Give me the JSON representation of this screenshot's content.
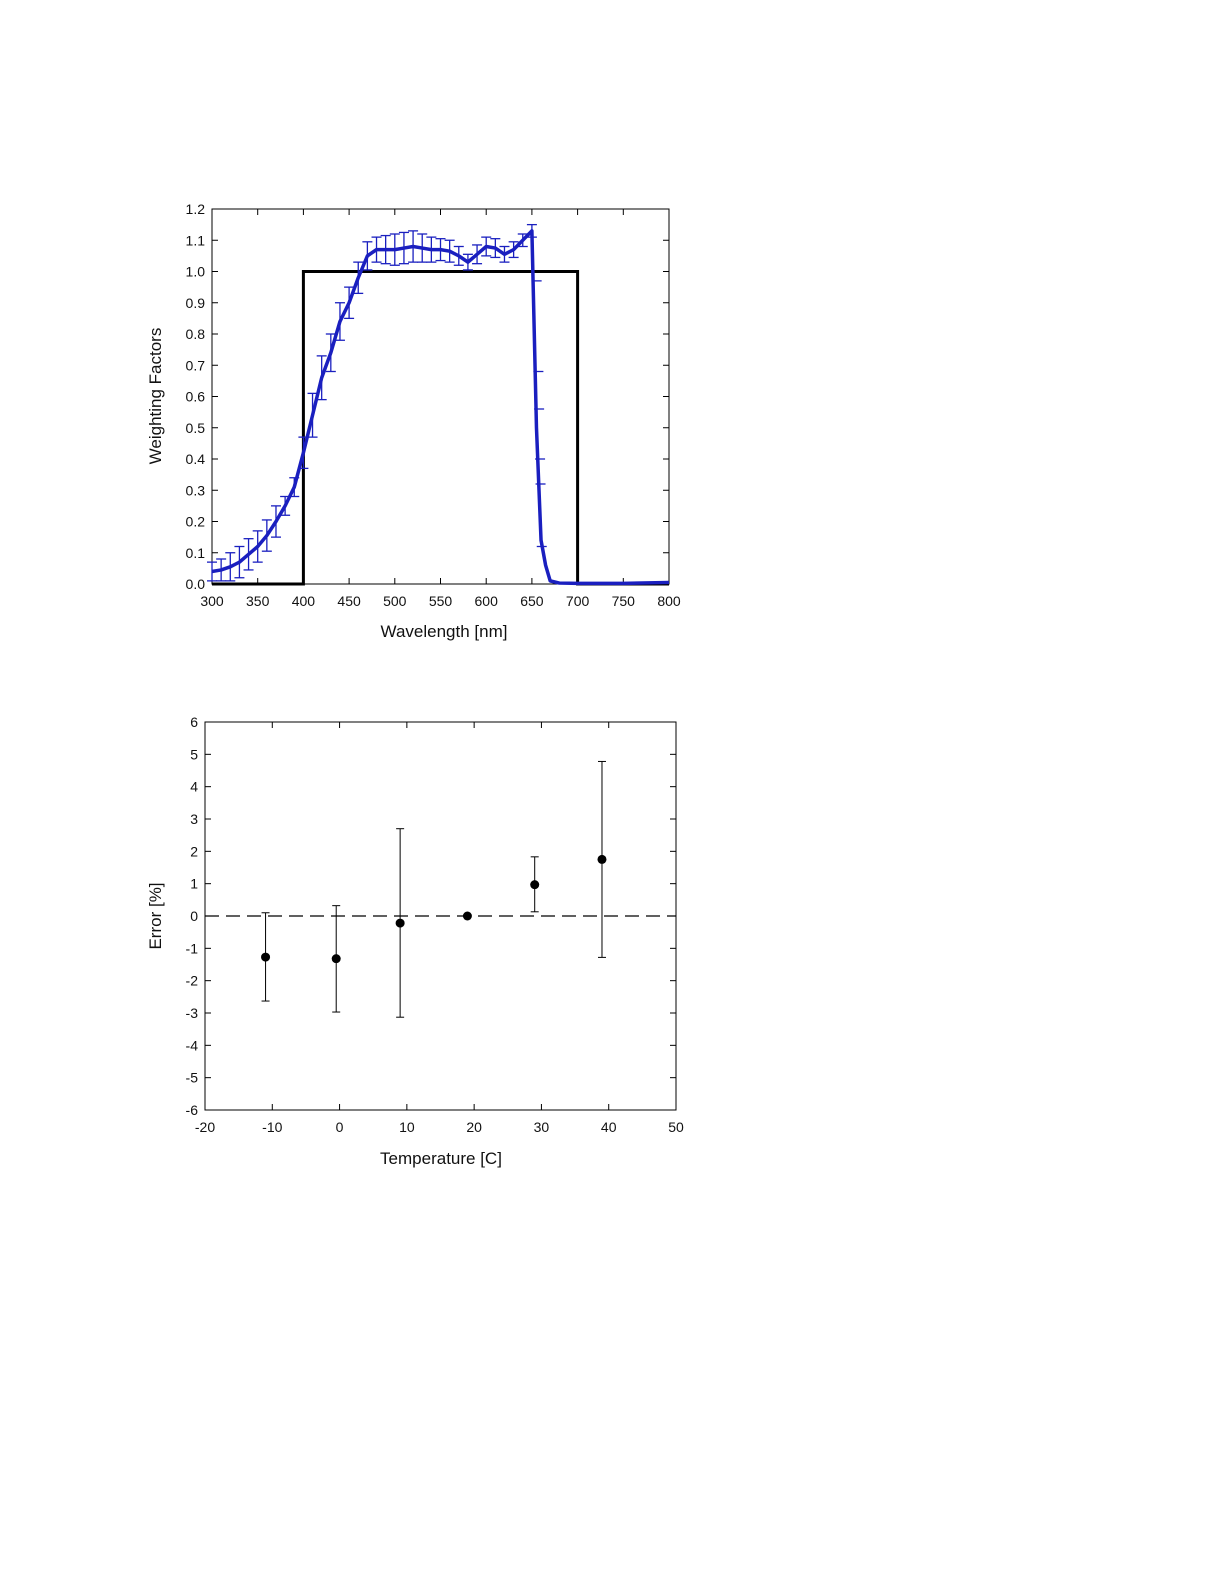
{
  "chart_data": [
    {
      "type": "line",
      "title": "",
      "xlabel": "Wavelength [nm]",
      "ylabel": "Weighting Factors",
      "xlim": [
        300,
        800
      ],
      "ylim": [
        0.0,
        1.2
      ],
      "grid": false,
      "legend": "none",
      "x_ticks": [
        "300",
        "350",
        "400",
        "450",
        "500",
        "550",
        "600",
        "650",
        "700",
        "750",
        "800"
      ],
      "y_ticks": [
        "0.0",
        "0.1",
        "0.2",
        "0.3",
        "0.4",
        "0.5",
        "0.6",
        "0.7",
        "0.8",
        "0.9",
        "1.0",
        "1.1",
        "1.2"
      ],
      "series": [
        {
          "color": "#000000",
          "style": "solid",
          "x": [
            300,
            400,
            400,
            700,
            700,
            800
          ],
          "y": [
            0.0,
            0.0,
            1.0,
            1.0,
            0.0,
            0.0
          ]
        },
        {
          "color": "#1a1fbf",
          "style": "solid-with-error-bars",
          "x": [
            300,
            310,
            320,
            330,
            340,
            350,
            360,
            370,
            380,
            390,
            400,
            410,
            420,
            430,
            440,
            450,
            460,
            470,
            480,
            490,
            500,
            510,
            520,
            530,
            540,
            550,
            560,
            570,
            580,
            590,
            600,
            610,
            620,
            630,
            640,
            650,
            655,
            660,
            665,
            670,
            680,
            700,
            750,
            800
          ],
          "y": [
            0.04,
            0.045,
            0.055,
            0.07,
            0.095,
            0.12,
            0.155,
            0.2,
            0.25,
            0.31,
            0.42,
            0.54,
            0.66,
            0.74,
            0.84,
            0.9,
            0.98,
            1.05,
            1.07,
            1.07,
            1.07,
            1.075,
            1.08,
            1.075,
            1.07,
            1.07,
            1.065,
            1.05,
            1.03,
            1.055,
            1.08,
            1.075,
            1.055,
            1.07,
            1.1,
            1.13,
            0.5,
            0.14,
            0.06,
            0.01,
            0.003,
            0.002,
            0.002,
            0.005
          ],
          "err": [
            0.03,
            0.035,
            0.045,
            0.05,
            0.05,
            0.05,
            0.05,
            0.05,
            0.03,
            0.03,
            0.05,
            0.07,
            0.07,
            0.06,
            0.06,
            0.05,
            0.05,
            0.045,
            0.04,
            0.045,
            0.05,
            0.05,
            0.05,
            0.045,
            0.04,
            0.035,
            0.035,
            0.03,
            0.025,
            0.03,
            0.03,
            0.03,
            0.025,
            0.025,
            0.02,
            0.02,
            0.0,
            0.0,
            0.0,
            0.0,
            0.0,
            0.0,
            0.0,
            0.0
          ]
        }
      ]
    },
    {
      "type": "scatter",
      "title": "",
      "xlabel": "Temperature [C]",
      "ylabel": "Error [%]",
      "xlim": [
        -20,
        50
      ],
      "ylim": [
        -6,
        6
      ],
      "grid": false,
      "legend": "none",
      "x_ticks": [
        "-20",
        "-10",
        "0",
        "10",
        "20",
        "30",
        "40",
        "50"
      ],
      "y_ticks": [
        "-6",
        "-5",
        "-4",
        "-3",
        "-2",
        "-1",
        "0",
        "1",
        "2",
        "3",
        "4",
        "5",
        "6"
      ],
      "reference_line": {
        "y": 0,
        "style": "dashed",
        "color": "#000000"
      },
      "series": [
        {
          "color": "#000000",
          "x": [
            -11,
            -0.5,
            9,
            19,
            29,
            39
          ],
          "y": [
            -1.27,
            -1.32,
            -0.22,
            0.0,
            0.97,
            1.75
          ],
          "err_low": [
            -2.63,
            -2.97,
            -3.13,
            0.0,
            0.13,
            -1.28
          ],
          "err_high": [
            0.1,
            0.32,
            2.7,
            0.0,
            1.83,
            4.78
          ]
        }
      ]
    }
  ]
}
